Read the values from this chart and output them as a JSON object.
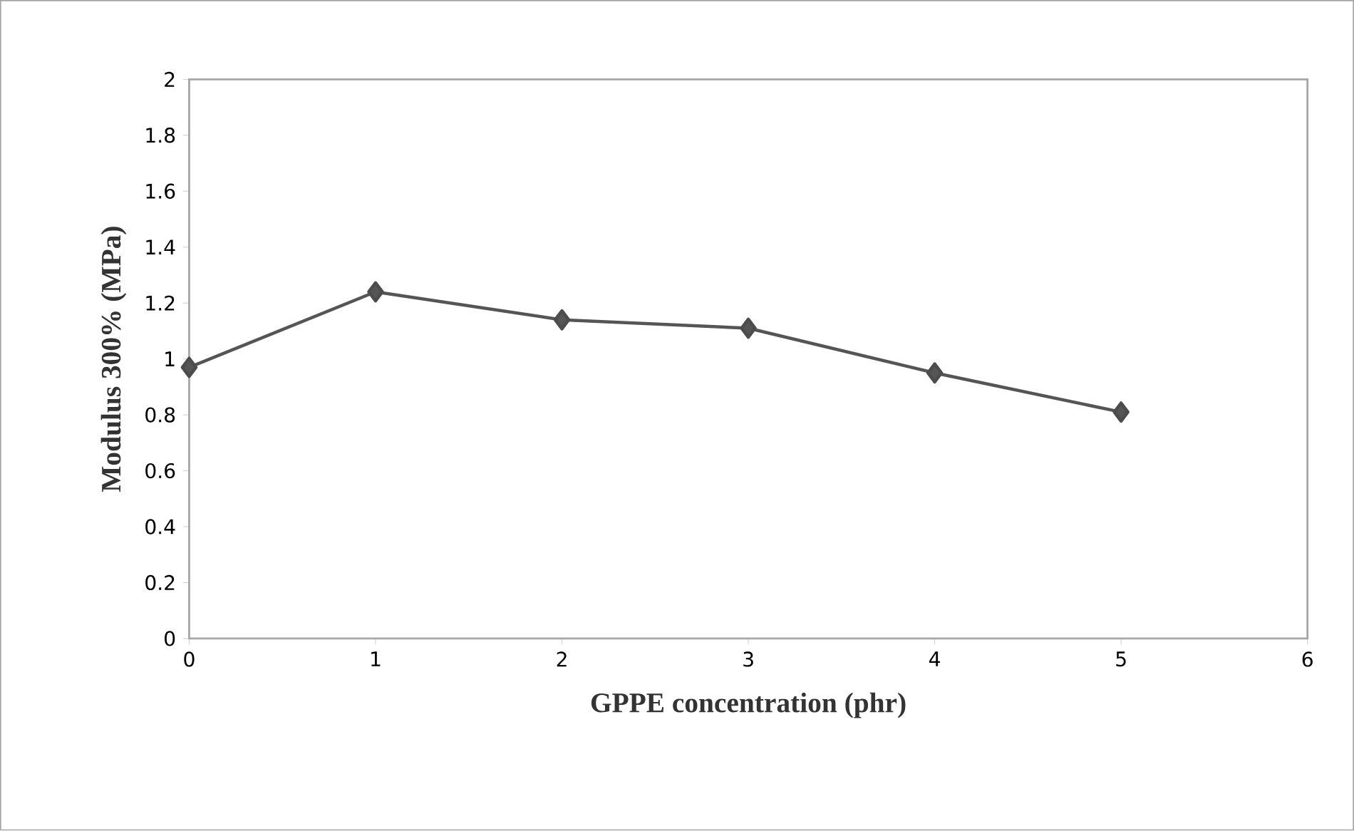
{
  "chart_data": {
    "type": "line",
    "xlabel": "GPPE concentration (phr)",
    "ylabel": "Modulus 300% (MPa)",
    "x": [
      0,
      1,
      2,
      3,
      4,
      5
    ],
    "series": [
      {
        "color": "#555555",
        "values": [
          0.97,
          1.24,
          1.14,
          1.11,
          0.95,
          0.81
        ]
      }
    ],
    "xlim": [
      0,
      6
    ],
    "ylim": [
      0,
      2
    ],
    "xticks": [
      0,
      1,
      2,
      3,
      4,
      5,
      6
    ],
    "yticks": [
      0,
      0.2,
      0.4,
      0.6,
      0.8,
      1,
      1.2,
      1.4,
      1.6,
      1.8,
      2
    ],
    "marker": "diamond",
    "line_style": "solid"
  }
}
